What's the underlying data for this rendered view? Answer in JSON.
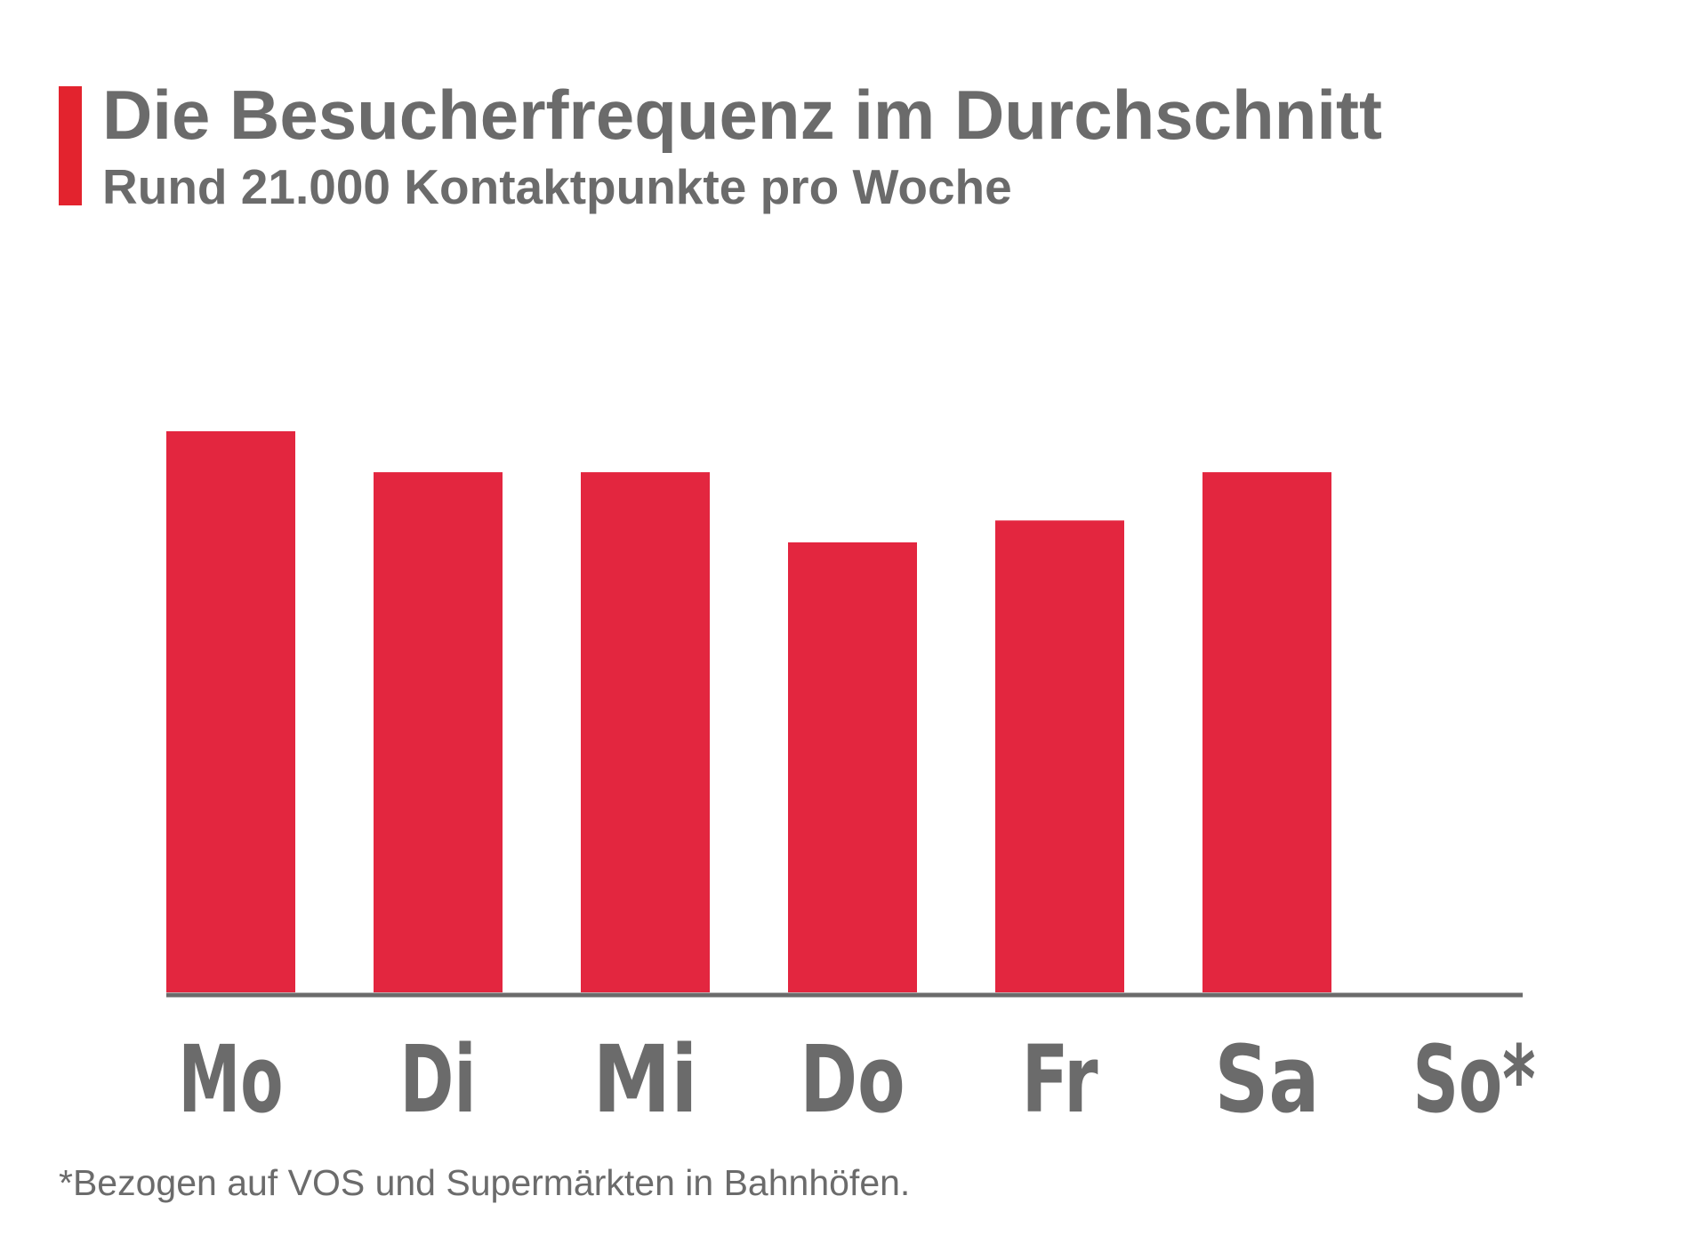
{
  "header": {
    "title": "Die Besucherfrequenz im Durchschnitt",
    "subtitle": "Rund 21.000 Kontaktpunkte pro Woche"
  },
  "footnote": "*Bezogen auf VOS und Supermärkten in Bahnhöfen.",
  "colors": {
    "bar": "#e3263f",
    "accent": "#e3232e",
    "text": "#6b6b6b",
    "axis": "#6b6b6b"
  },
  "chart_data": {
    "type": "bar",
    "categories": [
      "Mo",
      "Di",
      "Mi",
      "Do",
      "Fr",
      "Sa",
      "So*"
    ],
    "values": [
      100,
      92.7,
      92.7,
      80.2,
      84.1,
      92.7,
      null
    ],
    "ylim": [
      0,
      100
    ],
    "grid": false,
    "legend": "none",
    "xlabel": "",
    "ylabel": ""
  }
}
